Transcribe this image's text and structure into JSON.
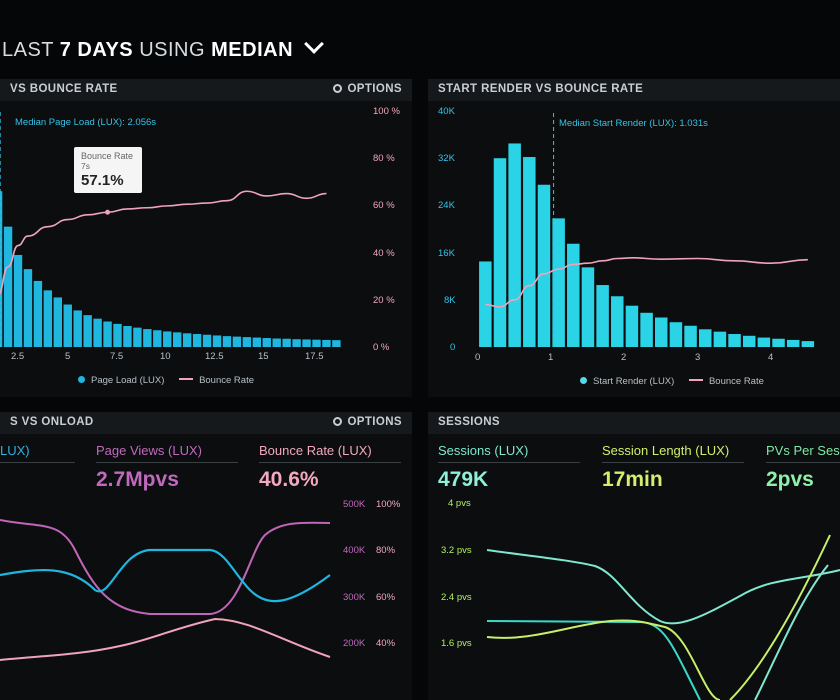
{
  "header": {
    "prefix": "LAST",
    "days": "7 DAYS",
    "using": "USING",
    "median": "MEDIAN"
  },
  "panel1": {
    "title": "VS BOUNCE RATE",
    "options": "OPTIONS",
    "median_label": "Median Page Load (LUX): 2.056s",
    "right_ticks": [
      "100 %",
      "80 %",
      "60 %",
      "40 %",
      "20 %",
      "0 %"
    ],
    "x_ticks": [
      "2.5",
      "5",
      "7.5",
      "10",
      "12.5",
      "15",
      "17.5"
    ],
    "legend": {
      "bar": "Page Load (LUX)",
      "line": "Bounce Rate"
    },
    "tooltip": {
      "title": "Bounce Rate",
      "sub": "7s",
      "value": "57.1%"
    }
  },
  "panel2": {
    "title": "START RENDER VS BOUNCE RATE",
    "median_label": "Median Start Render (LUX): 1.031s",
    "left_ticks": [
      "40K",
      "32K",
      "24K",
      "16K",
      "8K",
      "0"
    ],
    "x_ticks": [
      "0",
      "1",
      "2",
      "3",
      "4"
    ],
    "legend": {
      "bar": "Start Render (LUX)",
      "line": "Bounce Rate"
    }
  },
  "panel3": {
    "title": "S VS ONLOAD",
    "options": "OPTIONS",
    "stat1": {
      "label": "LUX)"
    },
    "stat2": {
      "label": "Page Views (LUX)",
      "value": "2.7Mpvs"
    },
    "stat3": {
      "label": "Bounce Rate (LUX)",
      "value": "40.6%"
    },
    "ticks_k": [
      "500K",
      "400K",
      "300K",
      "200K"
    ],
    "ticks_pct": [
      "100%",
      "80%",
      "60%",
      "40%"
    ]
  },
  "panel4": {
    "title": "SESSIONS",
    "stat1": {
      "label": "Sessions (LUX)",
      "value": "479K"
    },
    "stat2": {
      "label": "Session Length (LUX)",
      "value": "17min"
    },
    "stat3": {
      "label": "PVs Per Sessi",
      "value": "2pvs"
    },
    "ticks": [
      "4 pvs",
      "3.2 pvs",
      "2.4 pvs",
      "1.6 pvs"
    ]
  },
  "colors": {
    "cyan": "#1fb6e0",
    "pink": "#f0a3bb",
    "magenta": "#c066b8",
    "mint": "#7fe8cf",
    "lime": "#c8ef6a",
    "teal": "#38d9c9"
  },
  "chart_data": [
    {
      "type": "bar",
      "title": "Page Load vs Bounce Rate",
      "x": [
        1.5,
        2,
        2.5,
        3,
        3.5,
        4,
        4.5,
        5,
        5.5,
        6,
        6.5,
        7,
        7.5,
        8,
        8.5,
        9,
        9.5,
        10,
        10.5,
        11,
        11.5,
        12,
        12.5,
        13,
        13.5,
        14,
        14.5,
        15,
        15.5,
        16,
        16.5,
        17,
        17.5,
        18,
        18.5
      ],
      "series": [
        {
          "name": "Page Load (LUX)",
          "values": [
            66,
            51,
            39,
            33,
            28,
            24,
            21,
            18,
            15.5,
            13.5,
            12,
            10.8,
            9.8,
            8.9,
            8.2,
            7.6,
            7.1,
            6.6,
            6.2,
            5.8,
            5.5,
            5.2,
            4.9,
            4.6,
            4.4,
            4.2,
            4.0,
            3.8,
            3.6,
            3.5,
            3.3,
            3.2,
            3.1,
            3.0,
            2.9
          ]
        },
        {
          "name": "Bounce Rate",
          "x": [
            1.5,
            2,
            2.5,
            3,
            4,
            5,
            6,
            7,
            8,
            9,
            10,
            11,
            12,
            13,
            14,
            15,
            16,
            17,
            18
          ],
          "values": [
            22,
            34,
            43,
            47,
            51,
            54,
            56,
            57.1,
            58.5,
            59,
            59.8,
            60.5,
            61,
            62,
            66,
            64,
            65,
            63,
            65
          ]
        }
      ],
      "xlabel": "",
      "ylabel": "",
      "ylim": [
        0,
        100
      ],
      "median": 2.056
    },
    {
      "type": "bar",
      "title": "Start Render vs Bounce Rate",
      "x": [
        0.1,
        0.3,
        0.5,
        0.7,
        0.9,
        1.1,
        1.3,
        1.5,
        1.7,
        1.9,
        2.1,
        2.3,
        2.5,
        2.7,
        2.9,
        3.1,
        3.3,
        3.5,
        3.7,
        3.9,
        4.1,
        4.3,
        4.5
      ],
      "series": [
        {
          "name": "Start Render (LUX)",
          "values": [
            14500,
            32000,
            34500,
            32200,
            27500,
            21800,
            17500,
            13500,
            10500,
            8600,
            7000,
            5800,
            5000,
            4200,
            3600,
            3000,
            2600,
            2200,
            1900,
            1600,
            1400,
            1200,
            1000
          ]
        },
        {
          "name": "Bounce Rate",
          "x": [
            0.1,
            0.3,
            0.5,
            0.7,
            0.9,
            1.1,
            1.3,
            1.5,
            1.7,
            1.9,
            2.1,
            2.5,
            3,
            3.5,
            4,
            4.5
          ],
          "values": [
            18,
            17,
            20,
            26,
            31,
            33,
            35,
            35.5,
            36.5,
            37.5,
            37.8,
            37.2,
            37.5,
            36.5,
            35.5,
            37
          ]
        }
      ],
      "xlabel": "",
      "ylabel": "",
      "ylim": [
        0,
        40000
      ],
      "median": 1.031
    }
  ]
}
